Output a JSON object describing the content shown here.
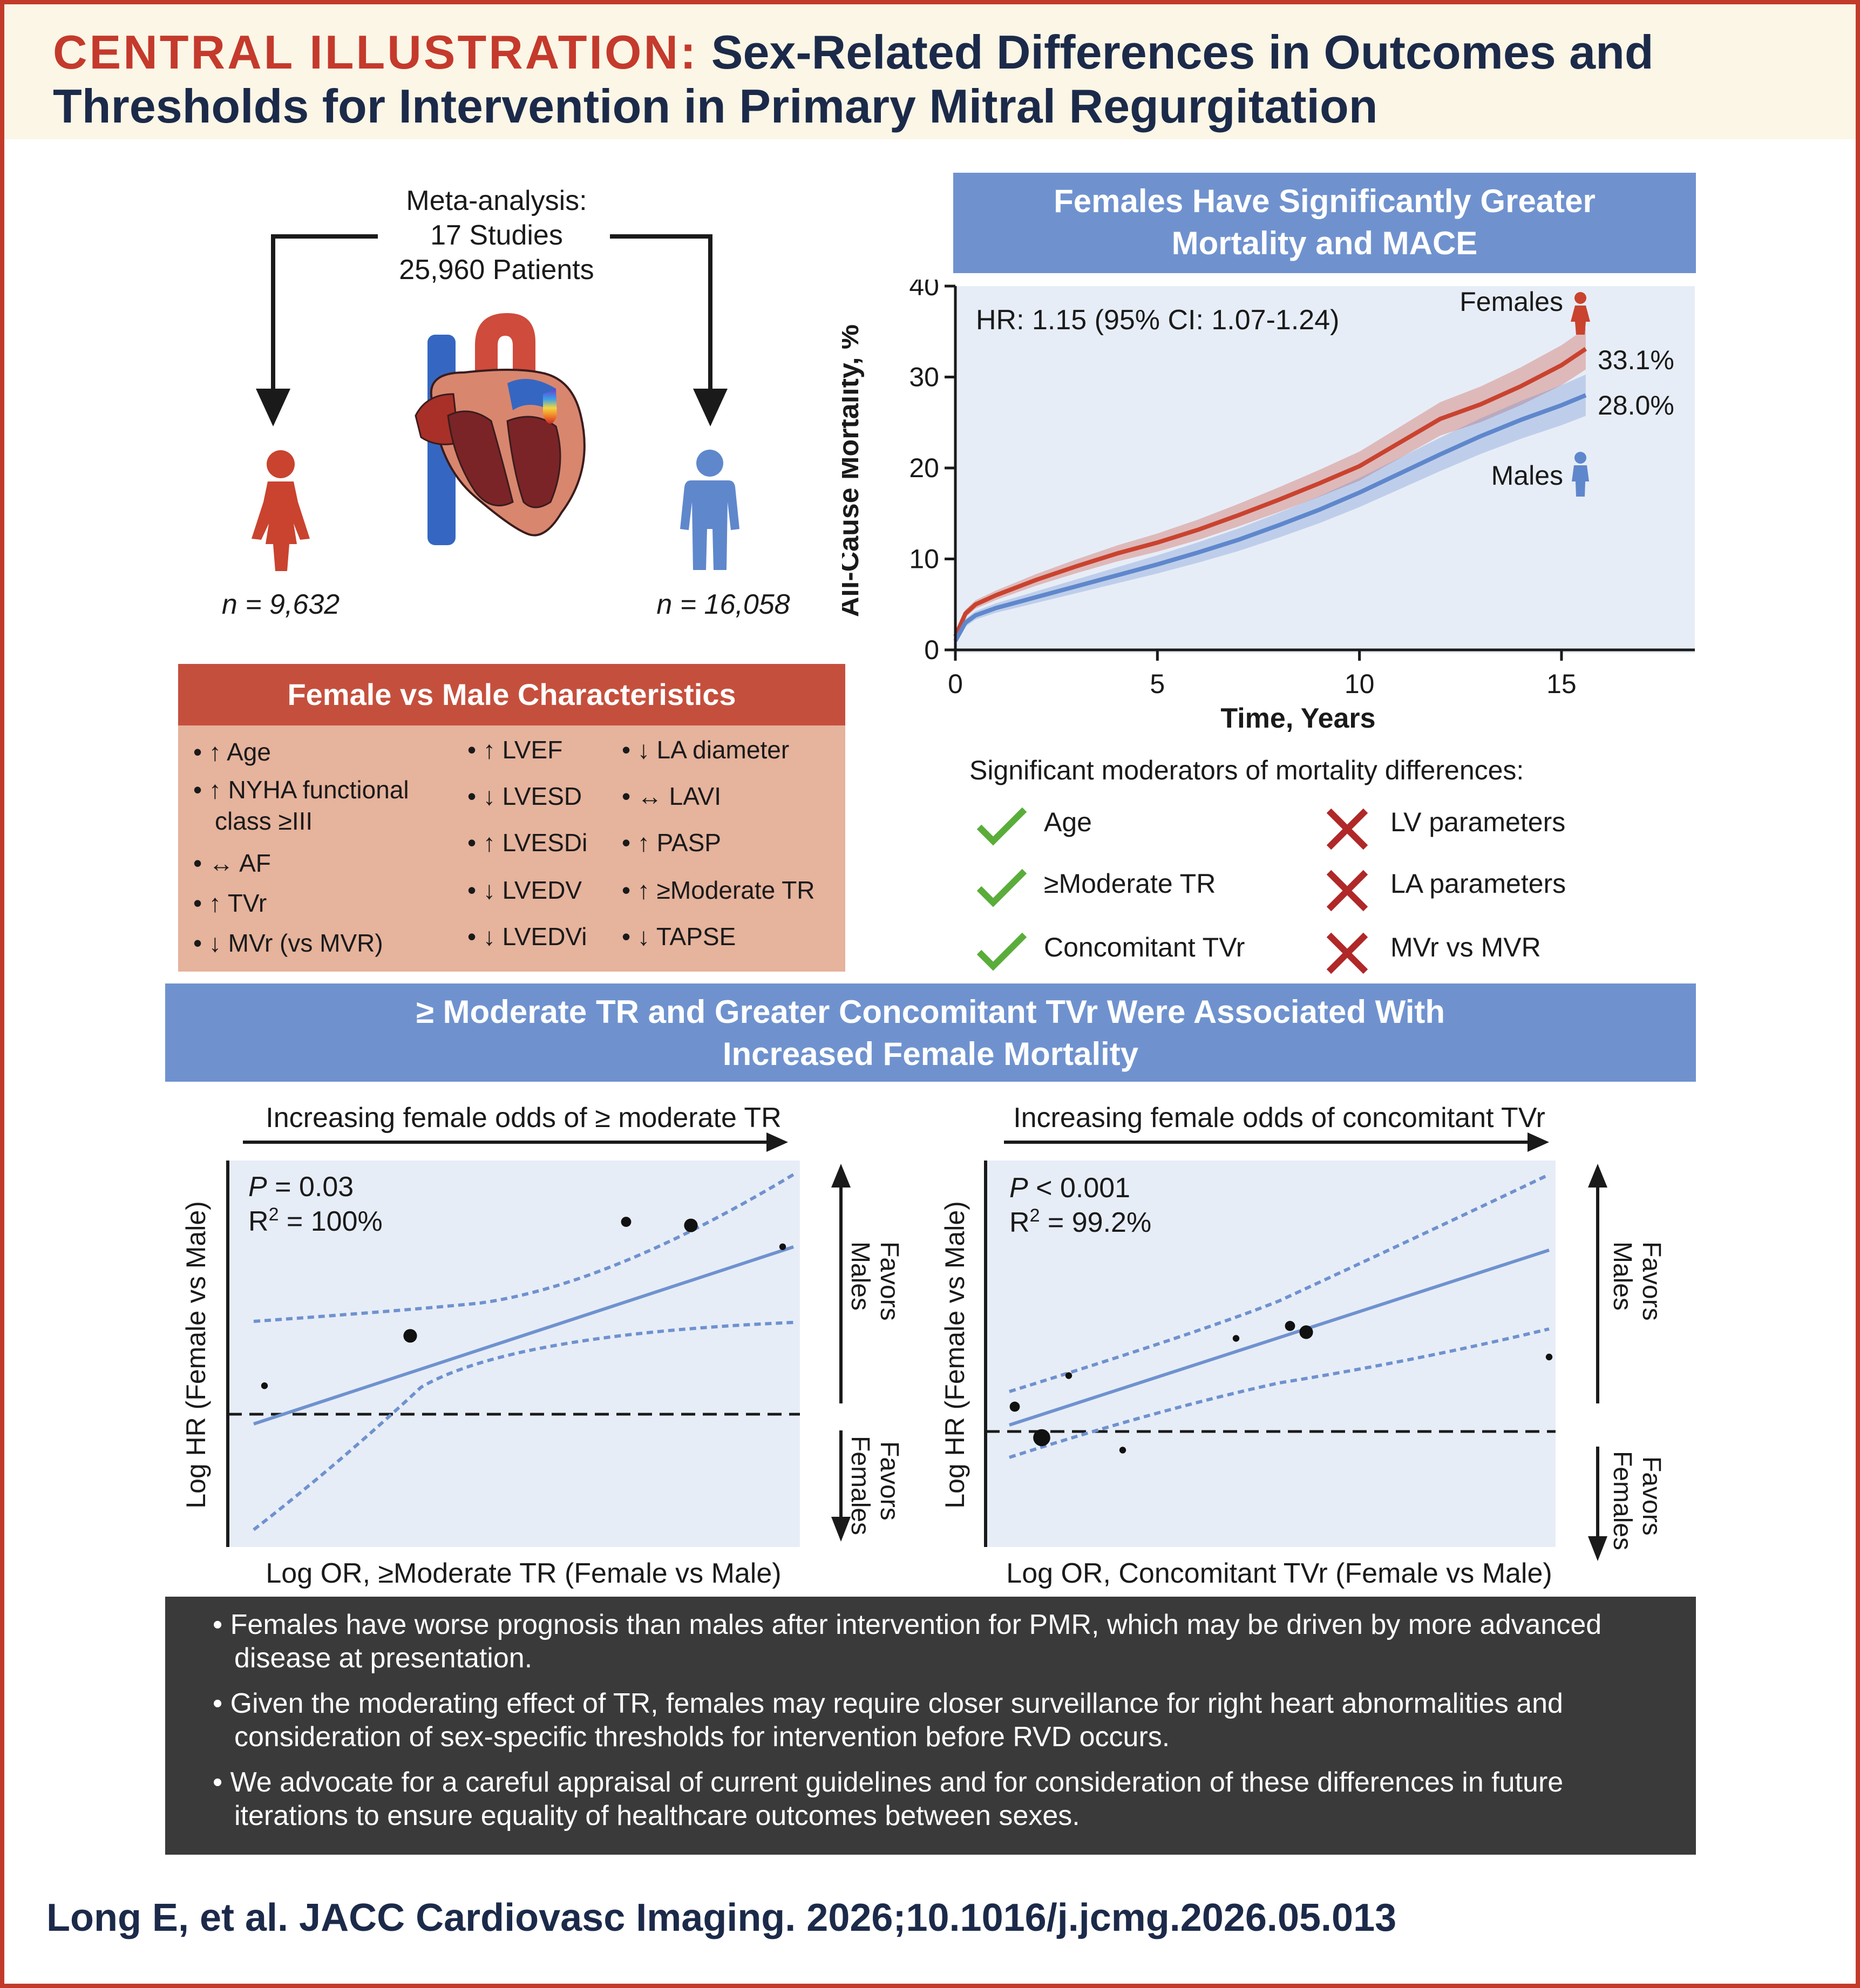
{
  "header": {
    "label": "CENTRAL ILLUSTRATION:",
    "title_line1": "Sex-Related Differences in Outcomes and",
    "title_line2": "Thresholds for Intervention in Primary Mitral Regurgitation"
  },
  "meta": {
    "line1": "Meta-analysis:",
    "line2": "17 Studies",
    "line3": "25,960 Patients",
    "n_female": "n = 9,632",
    "n_male": "n = 16,058"
  },
  "characteristics": {
    "title": "Female vs Male Characteristics",
    "col1": [
      "• ↑ Age",
      "• ↑ NYHA functional",
      "class ≥III",
      "• ↔ AF",
      "• ↑ TVr",
      "• ↓ MVr (vs MVR)"
    ],
    "col2": [
      "• ↑ LVEF",
      "• ↓ LVESD",
      "• ↑ LVESDi",
      "• ↓ LVEDV",
      "• ↓ LVEDVi"
    ],
    "col3": [
      "• ↓ LA diameter",
      "• ↔ LAVI",
      "• ↑ PASP",
      "• ↑ ≥Moderate TR",
      "• ↓ TAPSE"
    ]
  },
  "mortality": {
    "title_line1": "Females Have Significantly Greater",
    "title_line2": "Mortality and MACE",
    "hr_text": "HR: 1.15 (95% CI: 1.07-1.24)",
    "females_label": "Females",
    "males_label": "Males",
    "female_end": "33.1%",
    "male_end": "28.0%",
    "ylabel": "All-Cause Mortality, %",
    "xlabel": "Time, Years",
    "moderators_title": "Significant moderators of mortality differences:",
    "moderators_yes": [
      "Age",
      "≥Moderate TR",
      "Concomitant TVr"
    ],
    "moderators_no": [
      "LV parameters",
      "LA parameters",
      "MVr vs MVR"
    ]
  },
  "regression": {
    "title_line1": "≥ Moderate TR and Greater Concomitant TVr Were Associated With",
    "title_line2": "Increased Female Mortality",
    "left": {
      "top_label": "Increasing female odds of ≥ moderate TR",
      "p_label": "P",
      "p_value": " = 0.03",
      "r2_label": "R",
      "r2_sup": "2",
      "r2_value": " = 100%",
      "xlabel": "Log OR, ≥Moderate TR (Female vs Male)",
      "ylabel": "Log HR (Female vs Male)"
    },
    "right": {
      "top_label": "Increasing female odds of concomitant TVr",
      "p_label": "P",
      "p_value": " < 0.001",
      "r2_label": "R",
      "r2_sup": "2",
      "r2_value": " = 99.2%",
      "xlabel": "Log OR, Concomitant TVr (Female vs Male)",
      "ylabel": "Log HR (Female vs Male)"
    },
    "favors_males_1": "Favors",
    "favors_males_2": "Males",
    "favors_females_1": "Favors",
    "favors_females_2": "Females"
  },
  "conclusions": {
    "b1_l1": "• Females have worse prognosis than males after intervention for PMR, which may be driven by more advanced",
    "b1_l2": "disease at presentation.",
    "b2_l1": "• Given the moderating effect of TR, females may require closer surveillance for right heart abnormalities and",
    "b2_l2": "consideration of sex-specific thresholds for intervention before RVD occurs.",
    "b3_l1": "• We advocate for a careful appraisal of current guidelines and for consideration of these differences in future",
    "b3_l2": "iterations to ensure equality of healthcare outcomes between sexes."
  },
  "citation": "Long E, et al. JACC Cardiovasc Imaging. 2026;10.1016/j.jcmg.2026.05.013",
  "colors": {
    "female": "#c9432f",
    "male": "#5f87cc",
    "band_blue": "#6f92cf",
    "band_red": "#c54f3d",
    "check_green": "#5aad3a",
    "cross_red": "#b02828"
  },
  "chart_data": [
    {
      "type": "line",
      "xlabel": "Time, Years",
      "ylabel": "All-Cause Mortality, %",
      "xlim": [
        0,
        18.3
      ],
      "ylim": [
        0,
        40
      ],
      "xticks": [
        0,
        5,
        10,
        15
      ],
      "yticks": [
        0,
        10,
        20,
        30,
        40
      ],
      "series": [
        {
          "name": "Females",
          "x": [
            0,
            0.25,
            0.5,
            1,
            2,
            3,
            4,
            5,
            6,
            7,
            8,
            9,
            10,
            11,
            12,
            13,
            14,
            15,
            15.6
          ],
          "y": [
            1.5,
            4.0,
            5.0,
            6.0,
            7.7,
            9.2,
            10.6,
            11.8,
            13.2,
            14.8,
            16.5,
            18.3,
            20.2,
            22.8,
            25.4,
            27.0,
            29.0,
            31.3,
            33.1
          ]
        },
        {
          "name": "Males",
          "x": [
            0,
            0.25,
            0.5,
            1,
            2,
            3,
            4,
            5,
            6,
            7,
            8,
            9,
            10,
            11,
            12,
            13,
            14,
            15,
            15.6
          ],
          "y": [
            1.0,
            3.0,
            3.8,
            4.6,
            5.8,
            7.0,
            8.2,
            9.4,
            10.7,
            12.1,
            13.7,
            15.4,
            17.3,
            19.4,
            21.5,
            23.5,
            25.3,
            26.9,
            28.0
          ]
        }
      ]
    },
    {
      "type": "scatter",
      "title": "Increasing female odds of ≥ moderate TR",
      "xlabel": "Log OR, ≥Moderate TR (Female vs Male)",
      "ylabel": "Log HR (Female vs Male)",
      "points_x": [
        0.02,
        0.29,
        0.69,
        0.81,
        0.98
      ],
      "points_y": [
        0.08,
        0.22,
        0.54,
        0.53,
        0.47
      ],
      "sizes": [
        1,
        3,
        2,
        3,
        1
      ]
    },
    {
      "type": "scatter",
      "title": "Increasing female odds of concomitant TVr",
      "xlabel": "Log OR, Concomitant TVr (Female vs Male)",
      "ylabel": "Log HR (Female vs Male)",
      "points_x": [
        0.01,
        0.06,
        0.11,
        0.21,
        0.42,
        0.52,
        0.55,
        1.0
      ],
      "points_y": [
        0.04,
        -0.01,
        0.09,
        -0.03,
        0.15,
        0.17,
        0.16,
        0.12
      ],
      "sizes": [
        2,
        4,
        1,
        1,
        1,
        2,
        3,
        1
      ]
    }
  ]
}
